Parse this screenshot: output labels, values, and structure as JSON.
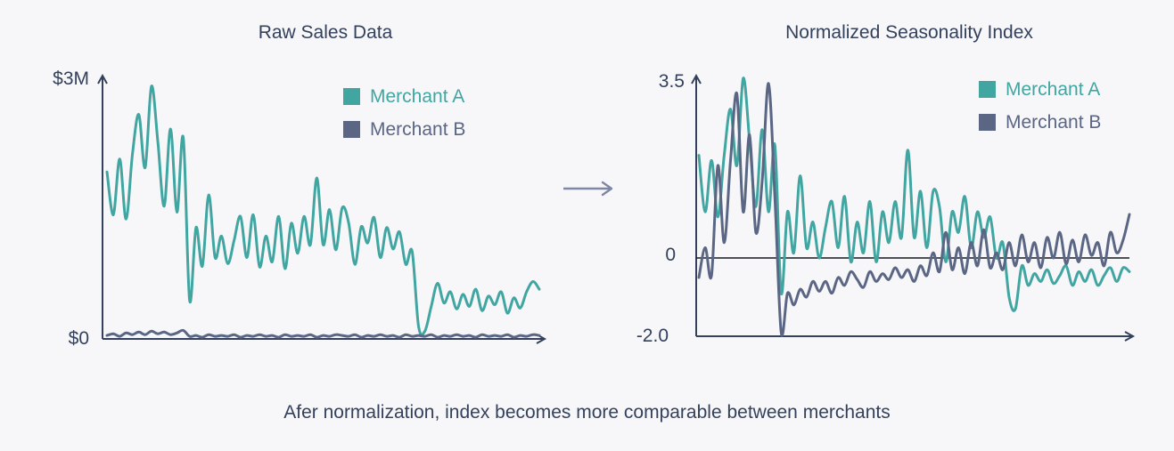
{
  "page": {
    "background": "#f7f7f9",
    "caption": "Afer normalization, index becomes more comparable between merchants"
  },
  "colors": {
    "merchant_a": "#41a6a1",
    "merchant_b": "#5a6684",
    "text": "#33415c",
    "axis": "#33415c",
    "connector": "#7e88a5",
    "zero_line": "#15181f"
  },
  "connector": {
    "icon": "right-arrow"
  },
  "chart_data": [
    {
      "type": "line",
      "title": "Raw Sales Data",
      "y_axis": {
        "top_label": "$3M",
        "bottom_label": "$0",
        "ymin": 0,
        "ymax": 3.05,
        "unit": "USD millions"
      },
      "grid": false,
      "legend_position": "top-right",
      "legend": [
        {
          "label": "Merchant A",
          "color_key": "merchant_a"
        },
        {
          "label": "Merchant B",
          "color_key": "merchant_b"
        }
      ],
      "series": [
        {
          "name": "Merchant A",
          "color_key": "merchant_a",
          "values": [
            1.95,
            1.45,
            2.1,
            1.4,
            2.15,
            2.62,
            2.0,
            2.95,
            2.3,
            1.55,
            2.45,
            1.48,
            2.35,
            0.45,
            1.3,
            0.85,
            1.68,
            0.95,
            1.2,
            0.88,
            1.15,
            1.43,
            0.95,
            1.45,
            0.84,
            1.2,
            0.9,
            1.43,
            0.82,
            1.35,
            1.0,
            1.43,
            1.1,
            1.88,
            1.1,
            1.51,
            1.04,
            1.53,
            1.36,
            0.87,
            1.31,
            1.12,
            1.42,
            0.95,
            1.3,
            1.05,
            1.25,
            0.87,
            1.02,
            0.15,
            0.09,
            0.38,
            0.65,
            0.42,
            0.55,
            0.35,
            0.52,
            0.38,
            0.58,
            0.33,
            0.5,
            0.4,
            0.55,
            0.3,
            0.48,
            0.36,
            0.55,
            0.67,
            0.58
          ]
        },
        {
          "name": "Merchant B",
          "color_key": "merchant_b",
          "values": [
            0.04,
            0.06,
            0.03,
            0.07,
            0.05,
            0.08,
            0.05,
            0.09,
            0.06,
            0.08,
            0.05,
            0.07,
            0.1,
            0.03,
            0.04,
            0.02,
            0.05,
            0.03,
            0.04,
            0.03,
            0.05,
            0.02,
            0.04,
            0.03,
            0.05,
            0.03,
            0.04,
            0.02,
            0.05,
            0.03,
            0.04,
            0.03,
            0.05,
            0.02,
            0.04,
            0.03,
            0.05,
            0.04,
            0.03,
            0.05,
            0.02,
            0.04,
            0.03,
            0.05,
            0.03,
            0.04,
            0.02,
            0.05,
            0.03,
            0.04,
            0.03,
            0.05,
            0.02,
            0.04,
            0.03,
            0.05,
            0.03,
            0.04,
            0.02,
            0.05,
            0.03,
            0.04,
            0.03,
            0.05,
            0.02,
            0.04,
            0.03,
            0.05,
            0.04
          ]
        }
      ]
    },
    {
      "type": "line",
      "title": "Normalized Seasonality Index",
      "y_axis": {
        "top_label": "3.5",
        "zero_label": "0",
        "bottom_label": "-2.0",
        "ymin": -2.0,
        "ymax": 3.5,
        "unit": "z-score"
      },
      "grid": false,
      "zero_line": true,
      "legend_position": "top-right",
      "legend": [
        {
          "label": "Merchant A",
          "color_key": "merchant_a"
        },
        {
          "label": "Merchant B",
          "color_key": "merchant_b"
        }
      ],
      "series": [
        {
          "name": "Merchant A",
          "color_key": "merchant_a",
          "values": [
            2.0,
            0.9,
            1.9,
            0.8,
            2.0,
            2.9,
            1.8,
            3.5,
            2.3,
            1.0,
            2.5,
            0.9,
            2.2,
            -0.9,
            0.9,
            0.1,
            1.6,
            0.2,
            0.7,
            0.0,
            0.6,
            1.1,
            0.2,
            1.2,
            -0.1,
            0.7,
            0.1,
            1.1,
            -0.1,
            0.9,
            0.3,
            1.1,
            0.4,
            2.1,
            0.4,
            1.3,
            0.2,
            1.3,
            1.0,
            -0.1,
            0.9,
            0.5,
            1.2,
            0.2,
            0.9,
            0.4,
            0.8,
            0.0,
            0.3,
            -1.0,
            -1.3,
            -0.2,
            -0.7,
            -0.4,
            -0.6,
            -0.3,
            -0.65,
            -0.45,
            -0.2,
            -0.7,
            -0.35,
            -0.6,
            -0.3,
            -0.7,
            -0.45,
            -0.25,
            -0.6,
            -0.25,
            -0.35
          ]
        },
        {
          "name": "Merchant B",
          "color_key": "merchant_b",
          "values": [
            -0.5,
            0.2,
            -0.45,
            1.8,
            0.3,
            1.9,
            3.2,
            0.9,
            2.4,
            0.5,
            1.5,
            3.4,
            1.2,
            -1.9,
            -0.9,
            -1.2,
            -0.8,
            -1.0,
            -0.6,
            -0.85,
            -0.6,
            -0.9,
            -0.5,
            -0.7,
            -0.35,
            -0.55,
            -0.75,
            -0.35,
            -0.6,
            -0.4,
            -0.55,
            -0.25,
            -0.5,
            -0.3,
            -0.6,
            -0.2,
            -0.45,
            0.1,
            -0.35,
            0.5,
            -0.3,
            0.2,
            -0.4,
            0.3,
            -0.2,
            0.55,
            -0.25,
            0.1,
            -0.3,
            0.3,
            -0.2,
            0.45,
            -0.1,
            0.3,
            -0.25,
            0.4,
            0.0,
            0.5,
            -0.15,
            0.35,
            -0.1,
            0.45,
            0.05,
            0.3,
            -0.2,
            0.5,
            0.1,
            0.35,
            0.85
          ]
        }
      ]
    }
  ]
}
